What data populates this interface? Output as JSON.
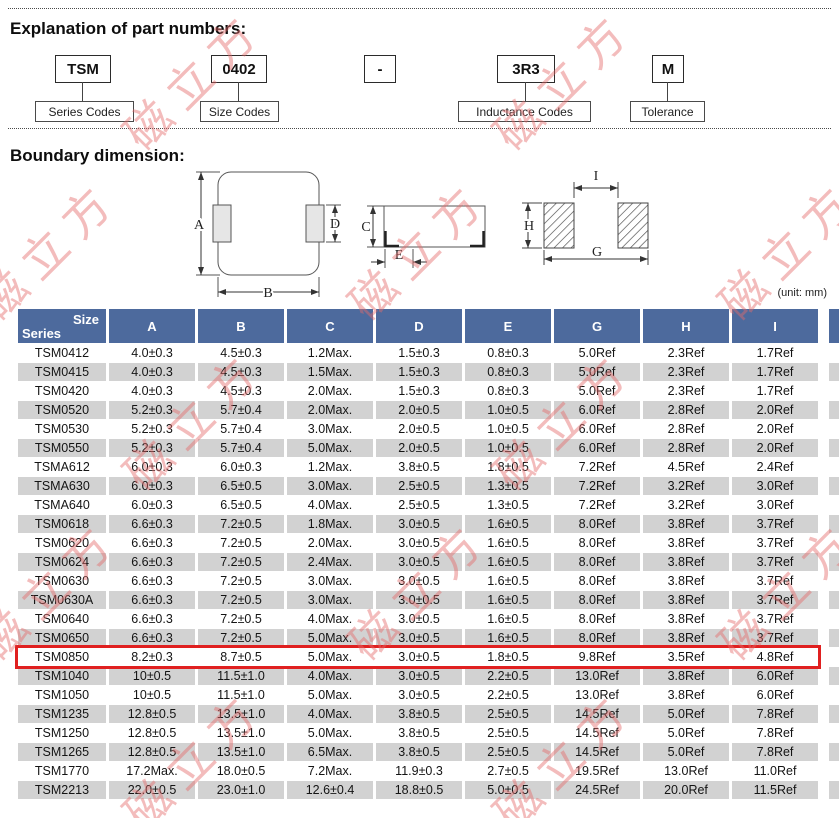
{
  "headings": {
    "part_numbers": "Explanation of part numbers:",
    "boundary": "Boundary dimension:"
  },
  "part_number": {
    "segments": [
      {
        "code": "TSM",
        "label": "Series Codes"
      },
      {
        "code": "0402",
        "label": "Size Codes"
      },
      {
        "code": "-",
        "label": ""
      },
      {
        "code": "3R3",
        "label": "Inductance Codes"
      },
      {
        "code": "M",
        "label": "Tolerance"
      }
    ]
  },
  "diagram": {
    "labels": {
      "A": "A",
      "B": "B",
      "C": "C",
      "D": "D",
      "E": "E",
      "G": "G",
      "H": "H",
      "I": "I"
    }
  },
  "watermark": {
    "text": "磁立方"
  },
  "colors": {
    "header_blue": "#4d6a9d",
    "row_gray": "#d2d2d2",
    "highlight_red": "#e02020",
    "watermark_pink": "#e46a6a"
  },
  "table": {
    "unit_note": "(unit: mm)",
    "corner": {
      "top": "Size",
      "bottom": "Series"
    },
    "columns": [
      "A",
      "B",
      "C",
      "D",
      "E",
      "G",
      "H",
      "I"
    ],
    "rows": [
      {
        "series": "TSM0412",
        "values": [
          "4.0±0.3",
          "4.5±0.3",
          "1.2Max.",
          "1.5±0.3",
          "0.8±0.3",
          "5.0Ref",
          "2.3Ref",
          "1.7Ref"
        ]
      },
      {
        "series": "TSM0415",
        "values": [
          "4.0±0.3",
          "4.5±0.3",
          "1.5Max.",
          "1.5±0.3",
          "0.8±0.3",
          "5.0Ref",
          "2.3Ref",
          "1.7Ref"
        ]
      },
      {
        "series": "TSM0420",
        "values": [
          "4.0±0.3",
          "4.5±0.3",
          "2.0Max.",
          "1.5±0.3",
          "0.8±0.3",
          "5.0Ref",
          "2.3Ref",
          "1.7Ref"
        ]
      },
      {
        "series": "TSM0520",
        "values": [
          "5.2±0.3",
          "5.7±0.4",
          "2.0Max.",
          "2.0±0.5",
          "1.0±0.5",
          "6.0Ref",
          "2.8Ref",
          "2.0Ref"
        ]
      },
      {
        "series": "TSM0530",
        "values": [
          "5.2±0.3",
          "5.7±0.4",
          "3.0Max.",
          "2.0±0.5",
          "1.0±0.5",
          "6.0Ref",
          "2.8Ref",
          "2.0Ref"
        ]
      },
      {
        "series": "TSM0550",
        "values": [
          "5.2±0.3",
          "5.7±0.4",
          "5.0Max.",
          "2.0±0.5",
          "1.0±0.5",
          "6.0Ref",
          "2.8Ref",
          "2.0Ref"
        ]
      },
      {
        "series": "TSMA612",
        "values": [
          "6.0±0.3",
          "6.0±0.3",
          "1.2Max.",
          "3.8±0.5",
          "1.8±0.5",
          "7.2Ref",
          "4.5Ref",
          "2.4Ref"
        ]
      },
      {
        "series": "TSMA630",
        "values": [
          "6.0±0.3",
          "6.5±0.5",
          "3.0Max.",
          "2.5±0.5",
          "1.3±0.5",
          "7.2Ref",
          "3.2Ref",
          "3.0Ref"
        ]
      },
      {
        "series": "TSMA640",
        "values": [
          "6.0±0.3",
          "6.5±0.5",
          "4.0Max.",
          "2.5±0.5",
          "1.3±0.5",
          "7.2Ref",
          "3.2Ref",
          "3.0Ref"
        ]
      },
      {
        "series": "TSM0618",
        "values": [
          "6.6±0.3",
          "7.2±0.5",
          "1.8Max.",
          "3.0±0.5",
          "1.6±0.5",
          "8.0Ref",
          "3.8Ref",
          "3.7Ref"
        ]
      },
      {
        "series": "TSM0620",
        "values": [
          "6.6±0.3",
          "7.2±0.5",
          "2.0Max.",
          "3.0±0.5",
          "1.6±0.5",
          "8.0Ref",
          "3.8Ref",
          "3.7Ref"
        ]
      },
      {
        "series": "TSM0624",
        "values": [
          "6.6±0.3",
          "7.2±0.5",
          "2.4Max.",
          "3.0±0.5",
          "1.6±0.5",
          "8.0Ref",
          "3.8Ref",
          "3.7Ref"
        ]
      },
      {
        "series": "TSM0630",
        "values": [
          "6.6±0.3",
          "7.2±0.5",
          "3.0Max.",
          "3.0±0.5",
          "1.6±0.5",
          "8.0Ref",
          "3.8Ref",
          "3.7Ref"
        ]
      },
      {
        "series": "TSM0630A",
        "values": [
          "6.6±0.3",
          "7.2±0.5",
          "3.0Max.",
          "3.0±0.5",
          "1.6±0.5",
          "8.0Ref",
          "3.8Ref",
          "3.7Ref"
        ]
      },
      {
        "series": "TSM0640",
        "values": [
          "6.6±0.3",
          "7.2±0.5",
          "4.0Max.",
          "3.0±0.5",
          "1.6±0.5",
          "8.0Ref",
          "3.8Ref",
          "3.7Ref"
        ]
      },
      {
        "series": "TSM0650",
        "values": [
          "6.6±0.3",
          "7.2±0.5",
          "5.0Max.",
          "3.0±0.5",
          "1.6±0.5",
          "8.0Ref",
          "3.8Ref",
          "3.7Ref"
        ]
      },
      {
        "series": "TSM0850",
        "highlight": true,
        "values": [
          "8.2±0.3",
          "8.7±0.5",
          "5.0Max.",
          "3.0±0.5",
          "1.8±0.5",
          "9.8Ref",
          "3.5Ref",
          "4.8Ref"
        ]
      },
      {
        "series": "TSM1040",
        "values": [
          "10±0.5",
          "11.5±1.0",
          "4.0Max.",
          "3.0±0.5",
          "2.2±0.5",
          "13.0Ref",
          "3.8Ref",
          "6.0Ref"
        ]
      },
      {
        "series": "TSM1050",
        "values": [
          "10±0.5",
          "11.5±1.0",
          "5.0Max.",
          "3.0±0.5",
          "2.2±0.5",
          "13.0Ref",
          "3.8Ref",
          "6.0Ref"
        ]
      },
      {
        "series": "TSM1235",
        "values": [
          "12.8±0.5",
          "13.5±1.0",
          "4.0Max.",
          "3.8±0.5",
          "2.5±0.5",
          "14.5Ref",
          "5.0Ref",
          "7.8Ref"
        ]
      },
      {
        "series": "TSM1250",
        "values": [
          "12.8±0.5",
          "13.5±1.0",
          "5.0Max.",
          "3.8±0.5",
          "2.5±0.5",
          "14.5Ref",
          "5.0Ref",
          "7.8Ref"
        ]
      },
      {
        "series": "TSM1265",
        "values": [
          "12.8±0.5",
          "13.5±1.0",
          "6.5Max.",
          "3.8±0.5",
          "2.5±0.5",
          "14.5Ref",
          "5.0Ref",
          "7.8Ref"
        ]
      },
      {
        "series": "TSM1770",
        "values": [
          "17.2Max.",
          "18.0±0.5",
          "7.2Max.",
          "11.9±0.3",
          "2.7±0.5",
          "19.5Ref",
          "13.0Ref",
          "11.0Ref"
        ]
      },
      {
        "series": "TSM2213",
        "values": [
          "22.0±0.5",
          "23.0±1.0",
          "12.6±0.4",
          "18.8±0.5",
          "5.0±0.5",
          "24.5Ref",
          "20.0Ref",
          "11.5Ref"
        ]
      }
    ]
  }
}
